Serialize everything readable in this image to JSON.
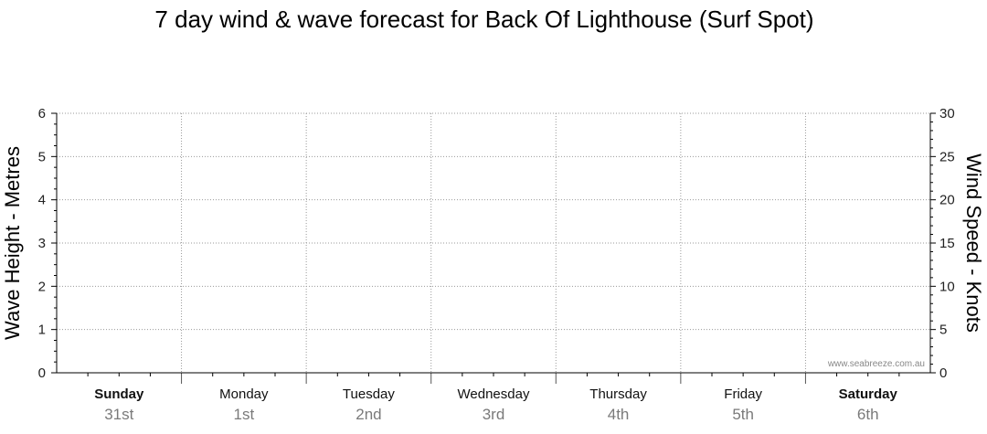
{
  "chart_data": {
    "type": "line",
    "title": "7 day wind & wave forecast for Back Of Lighthouse (Surf Spot)",
    "ylabel": "Wave Height - Metres",
    "y2label": "Wind Speed - Knots",
    "ylim": [
      0,
      6
    ],
    "y2lim": [
      0,
      30
    ],
    "yticks": [
      "0",
      "1",
      "2",
      "3",
      "4",
      "5",
      "6"
    ],
    "y2ticks": [
      "0",
      "5",
      "10",
      "15",
      "20",
      "25",
      "30"
    ],
    "days": [
      {
        "name": "Sunday",
        "date": "31st",
        "bold": true
      },
      {
        "name": "Monday",
        "date": "1st",
        "bold": false
      },
      {
        "name": "Tuesday",
        "date": "2nd",
        "bold": false
      },
      {
        "name": "Wednesday",
        "date": "3rd",
        "bold": false
      },
      {
        "name": "Thursday",
        "date": "4th",
        "bold": false
      },
      {
        "name": "Friday",
        "date": "5th",
        "bold": false
      },
      {
        "name": "Saturday",
        "date": "6th",
        "bold": true
      }
    ],
    "series": [],
    "grid": true,
    "watermark": "www.seabreeze.com.au"
  }
}
